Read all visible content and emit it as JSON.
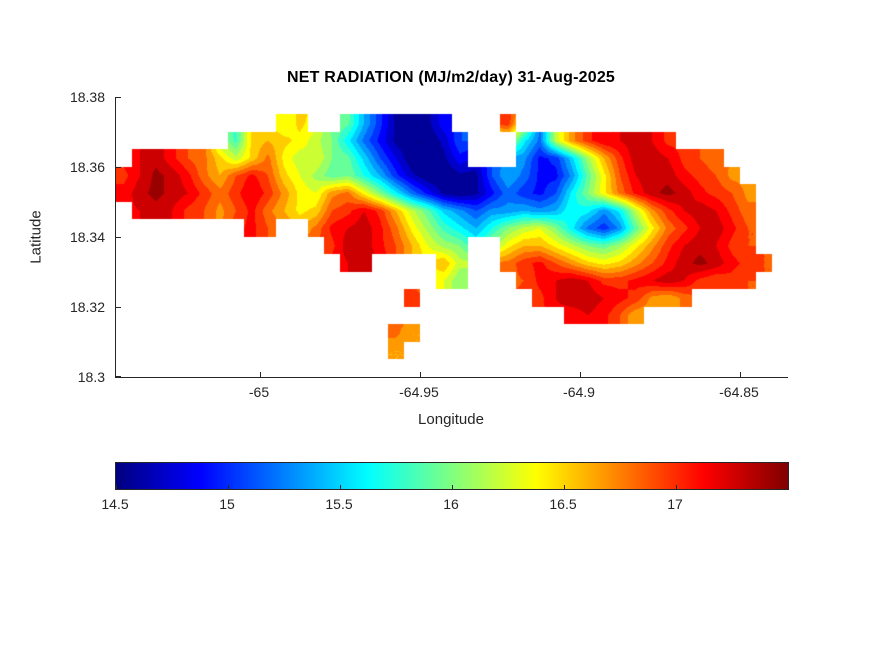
{
  "figure": {
    "background": "#ffffff",
    "axis_color": "#262626",
    "title_color": "#000000"
  },
  "chart_data": {
    "type": "heatmap",
    "title": "NET RADIATION (MJ/m2/day) 31-Aug-2025",
    "xlabel": "Longitude",
    "ylabel": "Latitude",
    "xlim": [
      -65.045,
      -64.835
    ],
    "ylim": [
      18.3,
      18.38
    ],
    "clim": [
      14.5,
      17.5
    ],
    "contour_interval": 0.15,
    "x_ticks": [
      -65,
      -64.95,
      -64.9,
      -64.85
    ],
    "x_tick_labels": [
      "-65",
      "-64.95",
      "-64.9",
      "-64.85"
    ],
    "y_ticks": [
      18.3,
      18.32,
      18.34,
      18.36,
      18.38
    ],
    "y_tick_labels": [
      "18.3",
      "18.32",
      "18.34",
      "18.36",
      "18.38"
    ],
    "colorbar": {
      "orientation": "horizontal",
      "colormap": "jet",
      "ticks": [
        14.5,
        15,
        15.5,
        16,
        16.5,
        17
      ],
      "tick_labels": [
        "14.5",
        "15",
        "15.5",
        "16",
        "16.5",
        "17"
      ],
      "stops": [
        {
          "t": 0,
          "color": "#000080"
        },
        {
          "t": 0.125,
          "color": "#0000ff"
        },
        {
          "t": 0.375,
          "color": "#00ffff"
        },
        {
          "t": 0.625,
          "color": "#ffff00"
        },
        {
          "t": 0.875,
          "color": "#ff0000"
        },
        {
          "t": 1,
          "color": "#800000"
        }
      ]
    },
    "grid": {
      "comment": "net radiation values MJ/m2/day on lon/lat grid; null = ocean",
      "lon_min": -65.045,
      "dlon": 0.005,
      "ncols": 42,
      "lat_max": 18.38,
      "dlat": 0.005,
      "nrows": 16,
      "values": [
        [
          null,
          null,
          null,
          null,
          null,
          null,
          null,
          null,
          null,
          null,
          null,
          null,
          null,
          null,
          null,
          null,
          null,
          null,
          null,
          null,
          null,
          null,
          null,
          null,
          null,
          null,
          null,
          null,
          null,
          null,
          null,
          null,
          null,
          null,
          null,
          null,
          null,
          null,
          null,
          null,
          null,
          null
        ],
        [
          null,
          null,
          null,
          null,
          null,
          null,
          null,
          null,
          null,
          null,
          16.3,
          16.5,
          null,
          null,
          15.9,
          15.4,
          15.0,
          14.6,
          14.5,
          14.6,
          14.9,
          null,
          null,
          null,
          17.0,
          null,
          null,
          null,
          null,
          null,
          null,
          null,
          null,
          null,
          null,
          null,
          null,
          null,
          null,
          null,
          null,
          null
        ],
        [
          null,
          null,
          null,
          null,
          null,
          null,
          null,
          15.8,
          16.5,
          16.6,
          16.5,
          16.4,
          16.2,
          16.0,
          15.6,
          15.2,
          14.9,
          14.6,
          14.5,
          14.5,
          14.7,
          15.1,
          null,
          null,
          null,
          15.6,
          15.2,
          16.2,
          16.7,
          17.0,
          17.2,
          17.2,
          17.3,
          17.2,
          17.0,
          null,
          null,
          null,
          null,
          null,
          null,
          null
        ],
        [
          null,
          17.2,
          17.3,
          17.1,
          16.9,
          16.8,
          16.5,
          16.2,
          16.5,
          16.8,
          16.4,
          16.2,
          16.3,
          16.0,
          15.9,
          15.5,
          15.1,
          14.8,
          14.5,
          14.5,
          14.6,
          14.9,
          null,
          null,
          null,
          15.3,
          14.9,
          15.0,
          15.5,
          16.1,
          16.6,
          17.0,
          17.3,
          17.3,
          17.2,
          17.0,
          16.9,
          16.8,
          null,
          null,
          null,
          null
        ],
        [
          17.0,
          17.2,
          17.4,
          17.3,
          17.1,
          16.8,
          16.6,
          16.9,
          17.1,
          16.9,
          16.5,
          16.3,
          16.1,
          15.9,
          16.0,
          15.7,
          15.4,
          15.0,
          14.7,
          14.5,
          14.5,
          14.6,
          14.6,
          15.1,
          15.4,
          15.2,
          14.9,
          14.9,
          15.3,
          15.9,
          16.4,
          16.9,
          17.2,
          17.3,
          17.3,
          17.1,
          17.0,
          16.9,
          16.7,
          null,
          null,
          null
        ],
        [
          17.1,
          17.3,
          17.4,
          17.3,
          17.2,
          17.0,
          16.8,
          17.0,
          17.2,
          17.0,
          16.7,
          16.4,
          16.3,
          16.7,
          16.8,
          16.4,
          16.0,
          15.6,
          15.2,
          14.9,
          14.6,
          14.5,
          14.6,
          14.9,
          15.2,
          15.0,
          14.9,
          15.1,
          15.6,
          16.0,
          16.4,
          16.8,
          17.1,
          17.3,
          17.4,
          17.3,
          17.1,
          17.0,
          16.9,
          16.7,
          null,
          null
        ],
        [
          null,
          17.2,
          17.3,
          17.2,
          17.0,
          16.9,
          16.7,
          16.9,
          17.1,
          16.8,
          16.6,
          16.4,
          16.5,
          16.9,
          17.0,
          17.2,
          17.0,
          16.6,
          16.2,
          15.9,
          15.5,
          15.3,
          15.1,
          15.3,
          15.3,
          15.4,
          15.3,
          15.4,
          15.7,
          15.6,
          15.3,
          15.6,
          16.2,
          16.7,
          17.0,
          17.2,
          17.3,
          17.2,
          17.0,
          16.8,
          null,
          null
        ],
        [
          null,
          null,
          null,
          null,
          null,
          null,
          null,
          null,
          17.1,
          16.9,
          null,
          null,
          16.8,
          17.1,
          17.2,
          17.3,
          17.1,
          16.8,
          16.4,
          16.1,
          15.8,
          15.6,
          15.4,
          15.7,
          16.0,
          16.2,
          16.3,
          16.0,
          15.6,
          15.2,
          15.0,
          15.3,
          15.9,
          16.4,
          16.8,
          17.0,
          17.2,
          17.3,
          17.1,
          16.9,
          null,
          null
        ],
        [
          null,
          null,
          null,
          null,
          null,
          null,
          null,
          null,
          null,
          null,
          null,
          null,
          null,
          17.0,
          17.3,
          17.3,
          17.1,
          16.9,
          16.6,
          16.3,
          16.1,
          16.0,
          null,
          null,
          16.4,
          16.6,
          16.6,
          16.4,
          16.2,
          16.0,
          15.9,
          16.1,
          16.4,
          16.7,
          17.0,
          17.2,
          17.3,
          17.2,
          17.0,
          16.9,
          null,
          null
        ],
        [
          null,
          null,
          null,
          null,
          null,
          null,
          null,
          null,
          null,
          null,
          null,
          null,
          null,
          null,
          17.2,
          17.3,
          null,
          null,
          null,
          null,
          16.6,
          16.2,
          null,
          null,
          16.8,
          17.0,
          17.1,
          16.9,
          16.7,
          16.5,
          16.4,
          16.5,
          16.7,
          16.9,
          17.1,
          17.3,
          17.4,
          17.3,
          17.1,
          17.0,
          16.9,
          null
        ],
        [
          null,
          null,
          null,
          null,
          null,
          null,
          null,
          null,
          null,
          null,
          null,
          null,
          null,
          null,
          null,
          null,
          null,
          null,
          null,
          null,
          16.3,
          16.0,
          null,
          null,
          null,
          16.9,
          17.1,
          17.2,
          17.3,
          17.2,
          17.0,
          17.0,
          17.1,
          17.2,
          17.3,
          17.2,
          17.0,
          16.9,
          17.0,
          16.9,
          null,
          null
        ],
        [
          null,
          null,
          null,
          null,
          null,
          null,
          null,
          null,
          null,
          null,
          null,
          null,
          null,
          null,
          null,
          null,
          null,
          null,
          17.0,
          null,
          null,
          null,
          null,
          null,
          null,
          null,
          17.0,
          17.2,
          17.3,
          17.3,
          17.2,
          17.1,
          17.0,
          16.7,
          16.6,
          16.8,
          null,
          null,
          null,
          null,
          null,
          null
        ],
        [
          null,
          null,
          null,
          null,
          null,
          null,
          null,
          null,
          null,
          null,
          null,
          null,
          null,
          null,
          null,
          null,
          null,
          null,
          null,
          null,
          null,
          null,
          null,
          null,
          null,
          null,
          null,
          null,
          17.1,
          17.2,
          17.1,
          16.9,
          16.6,
          null,
          null,
          null,
          null,
          null,
          null,
          null,
          null,
          null
        ],
        [
          null,
          null,
          null,
          null,
          null,
          null,
          null,
          null,
          null,
          null,
          null,
          null,
          null,
          null,
          null,
          null,
          null,
          16.8,
          16.6,
          null,
          null,
          null,
          null,
          null,
          null,
          null,
          null,
          null,
          null,
          null,
          null,
          null,
          null,
          null,
          null,
          null,
          null,
          null,
          null,
          null,
          null,
          null
        ],
        [
          null,
          null,
          null,
          null,
          null,
          null,
          null,
          null,
          null,
          null,
          null,
          null,
          null,
          null,
          null,
          null,
          null,
          16.6,
          null,
          null,
          null,
          null,
          null,
          null,
          null,
          null,
          null,
          null,
          null,
          null,
          null,
          null,
          null,
          null,
          null,
          null,
          null,
          null,
          null,
          null,
          null,
          null
        ],
        [
          null,
          null,
          null,
          null,
          null,
          null,
          null,
          null,
          null,
          null,
          null,
          null,
          null,
          null,
          null,
          null,
          null,
          null,
          null,
          null,
          null,
          null,
          null,
          null,
          null,
          null,
          null,
          null,
          null,
          null,
          null,
          null,
          null,
          null,
          null,
          null,
          null,
          null,
          null,
          null,
          null,
          null
        ]
      ]
    }
  }
}
